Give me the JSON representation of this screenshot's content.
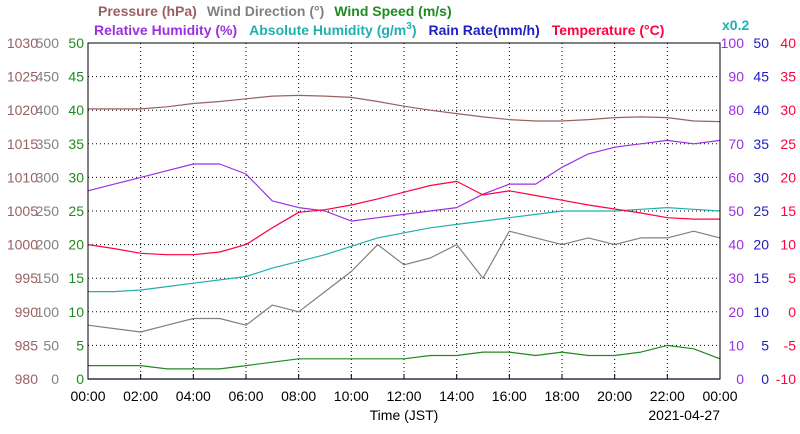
{
  "chart_data": {
    "type": "line",
    "date": "2021-04-27",
    "xlabel": "Time (JST)",
    "x_ticks": [
      "00:00",
      "02:00",
      "04:00",
      "06:00",
      "08:00",
      "10:00",
      "12:00",
      "14:00",
      "16:00",
      "18:00",
      "20:00",
      "22:00",
      "00:00"
    ],
    "x": [
      "00:00",
      "01:00",
      "02:00",
      "03:00",
      "04:00",
      "05:00",
      "06:00",
      "07:00",
      "08:00",
      "09:00",
      "10:00",
      "11:00",
      "12:00",
      "13:00",
      "14:00",
      "15:00",
      "16:00",
      "17:00",
      "18:00",
      "19:00",
      "20:00",
      "21:00",
      "22:00",
      "23:00",
      "24:00"
    ],
    "x_range_hours": [
      0,
      24
    ],
    "grid": true,
    "legend": {
      "row1": [
        {
          "label": "Pressure (hPa)",
          "color": "#9a6060"
        },
        {
          "label": "Wind Direction (°)",
          "color": "#808080"
        },
        {
          "label": "Wind Speed (m/s)",
          "color": "#208a20"
        }
      ],
      "row2": [
        {
          "label": "Relative Humidity (%)",
          "color": "#9a30e0"
        },
        {
          "label": "Absolute Humidity (g/m",
          "sup": "3",
          "tail": ")",
          "color": "#20b0b0"
        },
        {
          "label": "Rain Rate(mm/h)",
          "color": "#2020c0"
        },
        {
          "label": "Temperature (°C)",
          "color": "#ff0040"
        }
      ],
      "scale_note": {
        "label": "x0.2",
        "color": "#20b0b0"
      }
    },
    "axes": {
      "pressure": {
        "ticks": [
          "1030",
          "1025",
          "1020",
          "1015",
          "1010",
          "1005",
          "1000",
          "995",
          "990",
          "985",
          "980"
        ],
        "range": [
          980,
          1030
        ],
        "color": "#9a6060"
      },
      "wind_direction": {
        "ticks": [
          "500",
          "450",
          "400",
          "350",
          "300",
          "250",
          "200",
          "150",
          "100",
          "50",
          "0"
        ],
        "range": [
          0,
          500
        ],
        "color": "#808080"
      },
      "wind_speed": {
        "ticks": [
          "50",
          "45",
          "40",
          "35",
          "30",
          "25",
          "20",
          "15",
          "10",
          "5",
          "0"
        ],
        "range": [
          0,
          50
        ],
        "color": "#208a20"
      },
      "humidity": {
        "ticks": [
          "100",
          "90",
          "80",
          "70",
          "60",
          "50",
          "40",
          "30",
          "20",
          "10",
          "0"
        ],
        "range": [
          0,
          100
        ],
        "color": "#9a30e0"
      },
      "rain_rate": {
        "ticks": [
          "50",
          "45",
          "40",
          "35",
          "30",
          "25",
          "20",
          "15",
          "10",
          "5",
          "0"
        ],
        "range": [
          0,
          50
        ],
        "color": "#2020c0"
      },
      "temperature": {
        "ticks": [
          "40",
          "35",
          "30",
          "25",
          "20",
          "15",
          "10",
          "5",
          "0",
          "-5",
          "-10"
        ],
        "range": [
          -10,
          40
        ],
        "color": "#ff0040"
      }
    },
    "series": [
      {
        "name": "Pressure (hPa)",
        "color": "#9a6060",
        "axis": "pressure",
        "values": [
          1020.2,
          1020.2,
          1020.2,
          1020.5,
          1021.0,
          1021.3,
          1021.7,
          1022.1,
          1022.2,
          1022.1,
          1021.9,
          1021.3,
          1020.6,
          1020.0,
          1019.5,
          1019.0,
          1018.6,
          1018.4,
          1018.4,
          1018.6,
          1018.9,
          1019.0,
          1018.9,
          1018.4,
          1018.3
        ]
      },
      {
        "name": "Wind Direction (°)",
        "color": "#808080",
        "axis": "wind_direction",
        "values": [
          80,
          75,
          70,
          80,
          90,
          90,
          80,
          110,
          100,
          130,
          160,
          200,
          170,
          180,
          200,
          150,
          220,
          210,
          200,
          210,
          200,
          210,
          210,
          220,
          210
        ]
      },
      {
        "name": "Wind Speed (m/s)",
        "color": "#208a20",
        "axis": "wind_speed",
        "values": [
          2,
          2,
          2,
          1.5,
          1.5,
          1.5,
          2,
          2.5,
          3,
          3,
          3,
          3,
          3,
          3.5,
          3.5,
          4,
          4,
          3.5,
          4,
          3.5,
          3.5,
          4,
          5,
          4.5,
          3
        ]
      },
      {
        "name": "Relative Humidity (%)",
        "color": "#9a30e0",
        "axis": "humidity",
        "values": [
          56,
          58,
          60,
          62,
          64,
          64,
          61,
          53,
          51,
          50,
          47,
          48,
          49,
          50,
          51,
          55,
          58,
          58,
          63,
          67,
          69,
          70,
          71,
          70,
          71
        ]
      },
      {
        "name": "Absolute Humidity (g/m3)",
        "color": "#20b0b0",
        "axis": "humidity",
        "values": [
          26,
          26,
          26.5,
          27.5,
          28.5,
          29.5,
          30.5,
          33,
          35,
          37,
          39.5,
          42,
          43.5,
          45,
          46,
          47,
          48,
          49,
          50,
          50,
          50,
          50.5,
          51,
          50.5,
          50
        ]
      },
      {
        "name": "Rain Rate(mm/h)",
        "color": "#2020c0",
        "axis": "rain_rate",
        "values": [
          0,
          0,
          0,
          0,
          0,
          0,
          0,
          0,
          0,
          0,
          0,
          0,
          0,
          0,
          0,
          0,
          0,
          0,
          0,
          0,
          0,
          0,
          0,
          0,
          0
        ]
      },
      {
        "name": "Temperature (°C)",
        "color": "#ff0040",
        "axis": "temperature",
        "values": [
          10,
          9.4,
          8.7,
          8.5,
          8.5,
          8.9,
          10,
          12.5,
          14.8,
          15.2,
          15.9,
          16.8,
          17.8,
          18.8,
          19.4,
          17.4,
          18.0,
          17.3,
          16.6,
          15.9,
          15.3,
          14.7,
          14.0,
          13.8,
          13.8
        ]
      }
    ]
  }
}
